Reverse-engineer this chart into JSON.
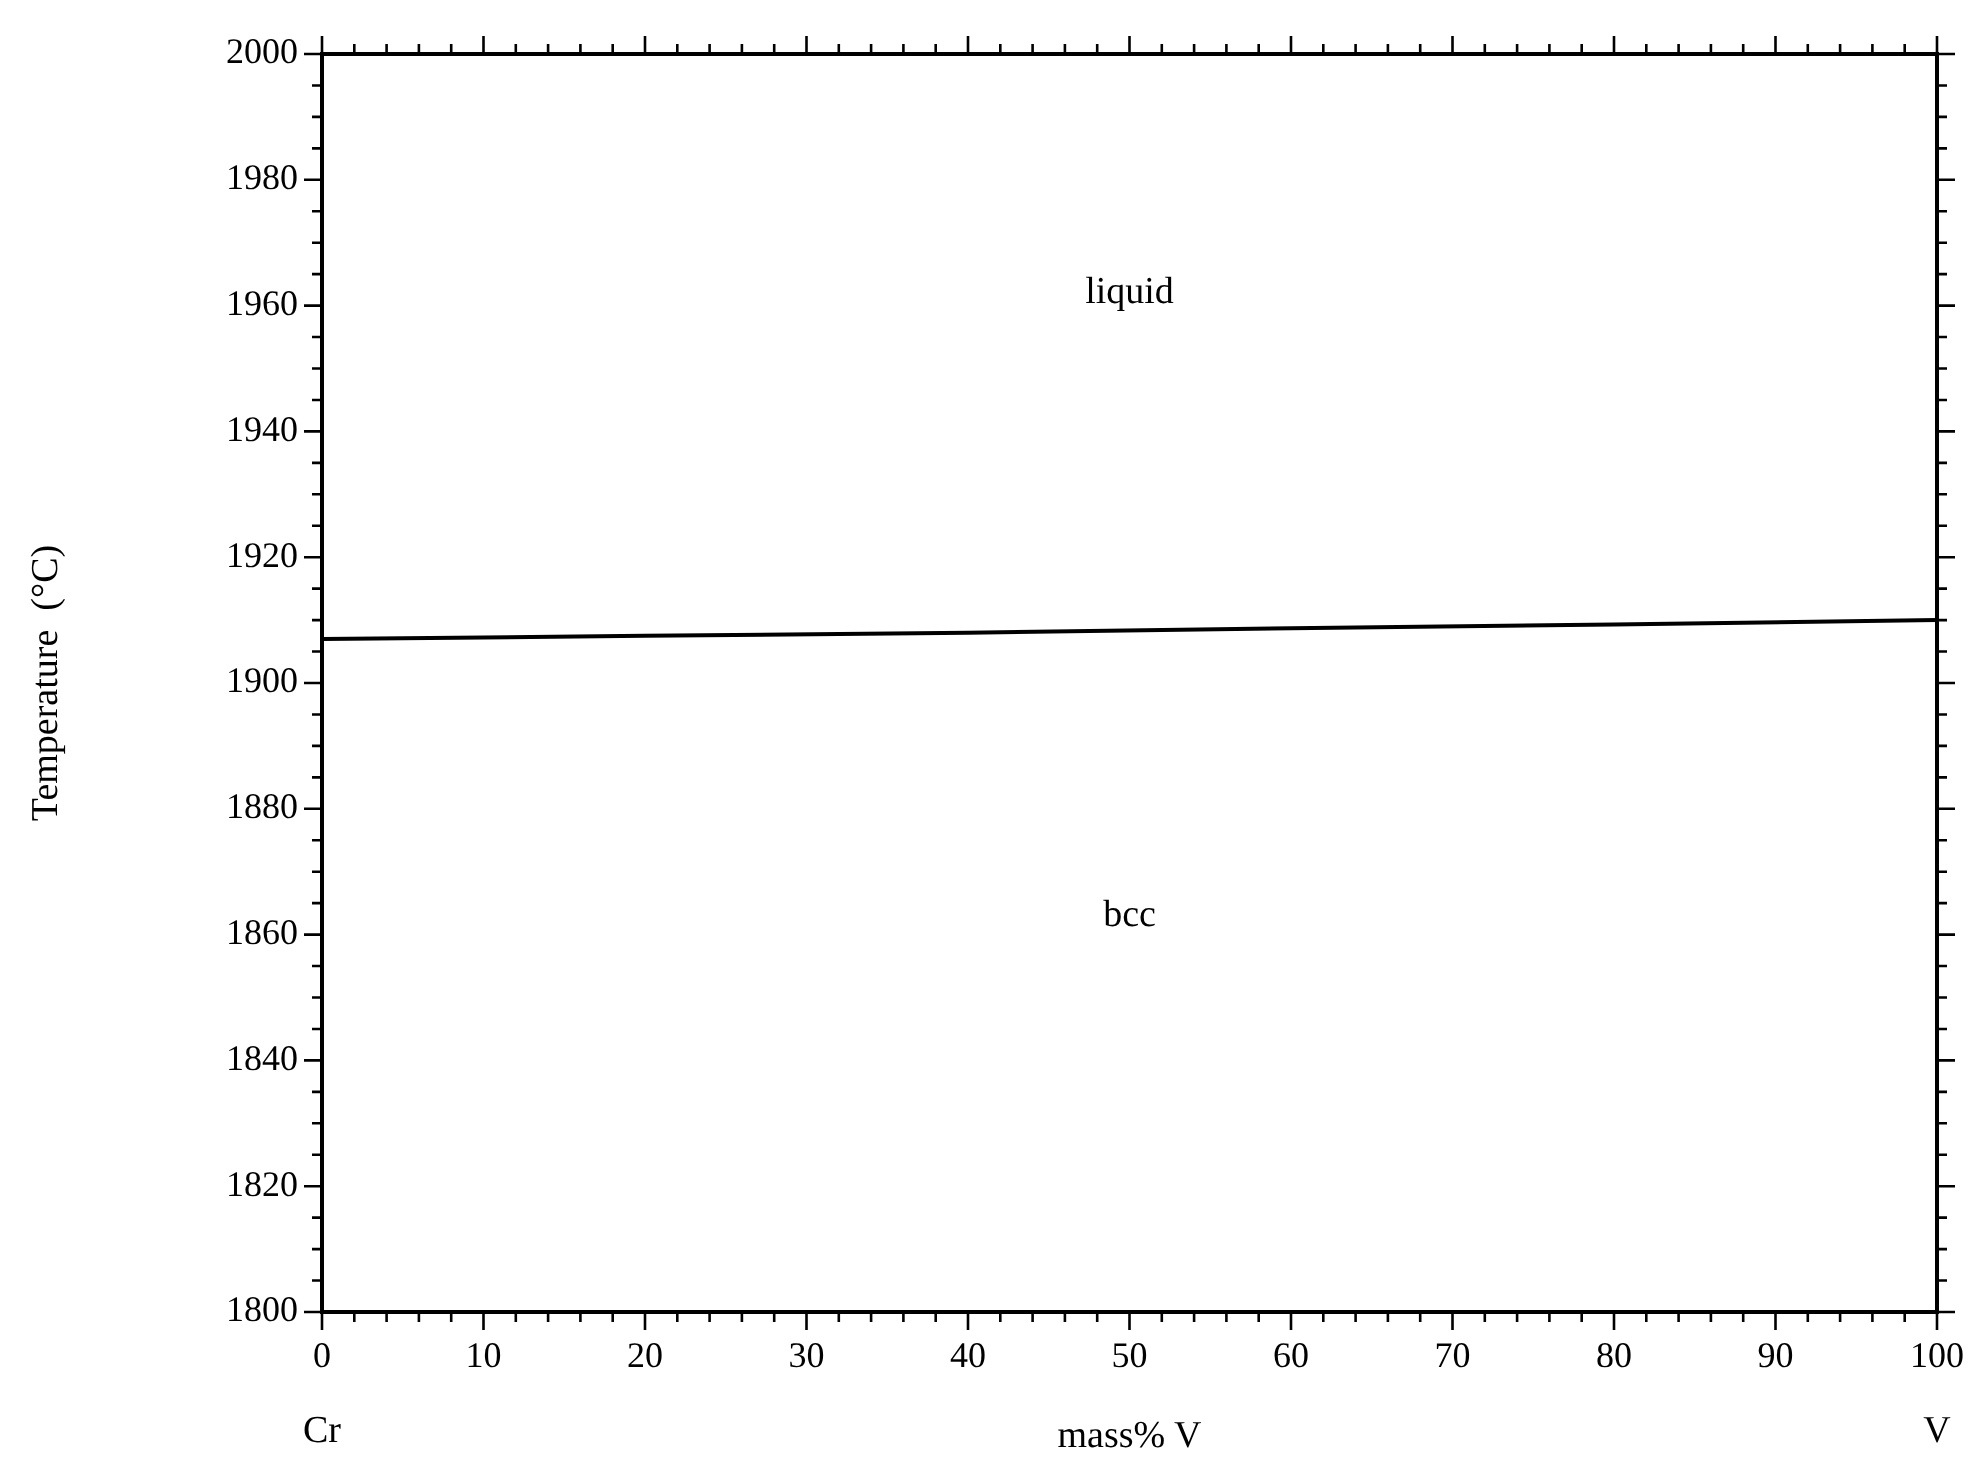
{
  "chart_data": {
    "type": "line",
    "xlabel": "mass% V",
    "ylabel": "Temperature  (°C)",
    "x": [
      0,
      20,
      40,
      60,
      80,
      100
    ],
    "series": [
      {
        "color": "#000000",
        "values": [
          1907,
          1907.5,
          1908,
          1908.7,
          1909.3,
          1910
        ]
      }
    ],
    "xlim": [
      0,
      100
    ],
    "ylim": [
      1800,
      2000
    ],
    "xticks": [
      0,
      {
        "value": 2,
        "label": null
      },
      {
        "value": 4,
        "label": null
      },
      {
        "value": 6,
        "label": null
      },
      {
        "value": 8,
        "label": null
      },
      10,
      {
        "value": 12,
        "label": null
      },
      {
        "value": 14,
        "label": null
      },
      {
        "value": 16,
        "label": null
      },
      {
        "value": 18,
        "label": null
      },
      20,
      {
        "value": 22,
        "label": null
      },
      {
        "value": 24,
        "label": null
      },
      {
        "value": 26,
        "label": null
      },
      {
        "value": 28,
        "label": null
      },
      30,
      {
        "value": 32,
        "label": null
      },
      {
        "value": 34,
        "label": null
      },
      {
        "value": 36,
        "label": null
      },
      {
        "value": 38,
        "label": null
      },
      40,
      {
        "value": 42,
        "label": null
      },
      {
        "value": 44,
        "label": null
      },
      {
        "value": 46,
        "label": null
      },
      {
        "value": 48,
        "label": null
      },
      50,
      {
        "value": 52,
        "label": null
      },
      {
        "value": 54,
        "label": null
      },
      {
        "value": 56,
        "label": null
      },
      {
        "value": 58,
        "label": null
      },
      60,
      {
        "value": 62,
        "label": null
      },
      {
        "value": 64,
        "label": null
      },
      {
        "value": 66,
        "label": null
      },
      {
        "value": 68,
        "label": null
      },
      70,
      {
        "value": 72,
        "label": null
      },
      {
        "value": 74,
        "label": null
      },
      {
        "value": 76,
        "label": null
      },
      {
        "value": 78,
        "label": null
      },
      80,
      {
        "value": 82,
        "label": null
      },
      {
        "value": 84,
        "label": null
      },
      {
        "value": 86,
        "label": null
      },
      {
        "value": 88,
        "label": null
      },
      90,
      {
        "value": 92,
        "label": null
      },
      {
        "value": 94,
        "label": null
      },
      {
        "value": 96,
        "label": null
      },
      {
        "value": 98,
        "label": null
      },
      100
    ],
    "yticks": [
      1800,
      {
        "value": 1805,
        "label": null
      },
      {
        "value": 1810,
        "label": null
      },
      {
        "value": 1815,
        "label": null
      },
      1820,
      {
        "value": 1825,
        "label": null
      },
      {
        "value": 1830,
        "label": null
      },
      {
        "value": 1835,
        "label": null
      },
      1840,
      {
        "value": 1845,
        "label": null
      },
      {
        "value": 1850,
        "label": null
      },
      {
        "value": 1855,
        "label": null
      },
      1860,
      {
        "value": 1865,
        "label": null
      },
      {
        "value": 1870,
        "label": null
      },
      {
        "value": 1875,
        "label": null
      },
      1880,
      {
        "value": 1885,
        "label": null
      },
      {
        "value": 1890,
        "label": null
      },
      {
        "value": 1895,
        "label": null
      },
      1900,
      {
        "value": 1905,
        "label": null
      },
      {
        "value": 1910,
        "label": null
      },
      {
        "value": 1915,
        "label": null
      },
      1920,
      {
        "value": 1925,
        "label": null
      },
      {
        "value": 1930,
        "label": null
      },
      {
        "value": 1935,
        "label": null
      },
      1940,
      {
        "value": 1945,
        "label": null
      },
      {
        "value": 1950,
        "label": null
      },
      {
        "value": 1955,
        "label": null
      },
      1960,
      {
        "value": 1965,
        "label": null
      },
      {
        "value": 1970,
        "label": null
      },
      {
        "value": 1975,
        "label": null
      },
      1980,
      {
        "value": 1985,
        "label": null
      },
      {
        "value": 1990,
        "label": null
      },
      {
        "value": 1995,
        "label": null
      },
      2000
    ],
    "annotations": [
      "liquid",
      "bcc",
      "Cr",
      "V"
    ],
    "grid": false,
    "legend": false,
    "marker": "none",
    "line_style": "solid"
  }
}
